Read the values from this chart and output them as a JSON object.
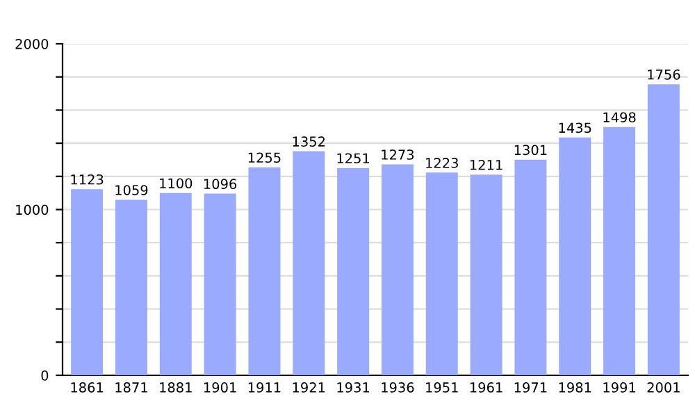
{
  "chart_data": {
    "type": "bar",
    "categories": [
      "1861",
      "1871",
      "1881",
      "1901",
      "1911",
      "1921",
      "1931",
      "1936",
      "1951",
      "1961",
      "1971",
      "1981",
      "1991",
      "2001"
    ],
    "values": [
      1123,
      1059,
      1100,
      1096,
      1255,
      1352,
      1251,
      1273,
      1223,
      1211,
      1301,
      1435,
      1498,
      1756
    ],
    "color": "#99aaff",
    "ylim": [
      0,
      2000
    ],
    "yticks": [
      0,
      {
        "value": 200,
        "label": null
      },
      {
        "value": 400,
        "label": null
      },
      {
        "value": 600,
        "label": null
      },
      {
        "value": 800,
        "label": null
      },
      1000,
      {
        "value": 1200,
        "label": null
      },
      {
        "value": 1400,
        "label": null
      },
      {
        "value": 1600,
        "label": null
      },
      {
        "value": 1800,
        "label": null
      },
      2000
    ],
    "grid": "y",
    "data_labels": true
  }
}
